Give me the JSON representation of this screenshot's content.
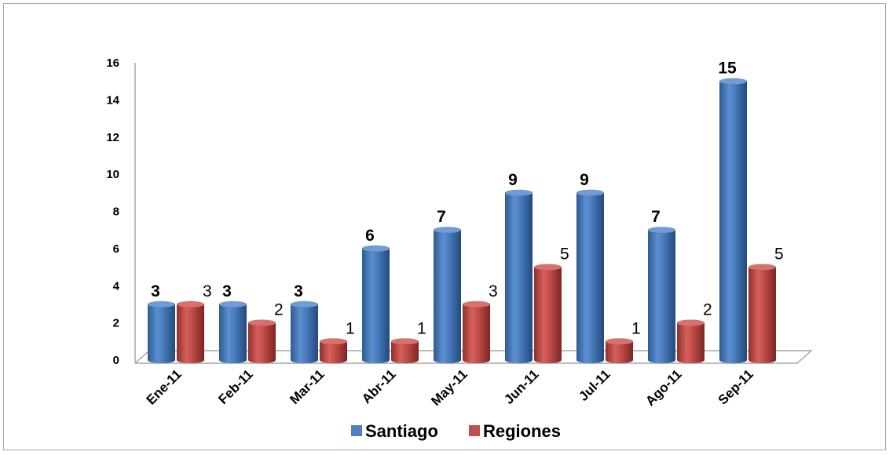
{
  "chart_data": {
    "type": "bar",
    "categories": [
      "Ene-11",
      "Feb-11",
      "Mar-11",
      "Abr-11",
      "May-11",
      "Jun-11",
      "Jul-11",
      "Ago-11",
      "Sep-11"
    ],
    "series": [
      {
        "name": "Santiago",
        "values": [
          3,
          3,
          3,
          6,
          7,
          9,
          9,
          7,
          15
        ],
        "color": "#4f81bd"
      },
      {
        "name": "Regiones",
        "values": [
          3,
          2,
          1,
          1,
          3,
          5,
          1,
          2,
          5
        ],
        "color": "#c0504d"
      }
    ],
    "y_ticks": [
      "0",
      "2",
      "4",
      "6",
      "8",
      "10",
      "12",
      "14",
      "16"
    ],
    "ylim": [
      0,
      16
    ],
    "grid": false,
    "legend_position": "bottom",
    "style": "3d-cylinder"
  }
}
